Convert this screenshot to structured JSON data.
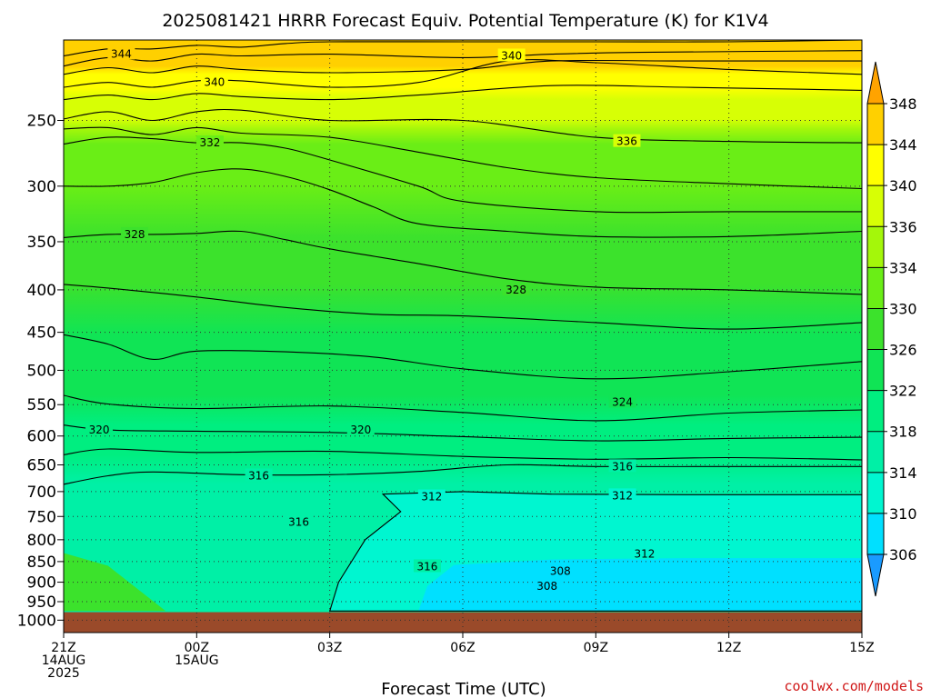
{
  "chart_data": {
    "type": "contour",
    "title": "2025081421 HRRR Forecast Equiv. Potential Temperature (K) for K1V4",
    "xlabel": "Forecast Time (UTC)",
    "credit": "coolwx.com/models",
    "x_ticks": [
      {
        "hour": 0,
        "lines": [
          "21Z",
          "14AUG",
          "2025"
        ]
      },
      {
        "hour": 3,
        "lines": [
          "00Z",
          "15AUG"
        ]
      },
      {
        "hour": 6,
        "lines": [
          "03Z"
        ]
      },
      {
        "hour": 9,
        "lines": [
          "06Z"
        ]
      },
      {
        "hour": 12,
        "lines": [
          "09Z"
        ]
      },
      {
        "hour": 15,
        "lines": [
          "12Z"
        ]
      },
      {
        "hour": 18,
        "lines": [
          "15Z"
        ]
      }
    ],
    "xlim": [
      0,
      18
    ],
    "y_ticks": [
      250,
      300,
      350,
      400,
      450,
      500,
      550,
      600,
      650,
      700,
      750,
      800,
      850,
      900,
      950,
      1000
    ],
    "ylim_hpa": [
      200,
      1035
    ],
    "y_scale": "log-pressure",
    "ground_pressure_hpa": 978,
    "grid": "dotted",
    "colorbar": {
      "ticks": [
        306,
        310,
        314,
        318,
        322,
        326,
        330,
        334,
        336,
        340,
        344,
        348
      ],
      "bands": [
        {
          "range": [
            302,
            306
          ],
          "color": "#1a9bff"
        },
        {
          "range": [
            306,
            310
          ],
          "color": "#00e0ff"
        },
        {
          "range": [
            310,
            314
          ],
          "color": "#00f6d0"
        },
        {
          "range": [
            314,
            318
          ],
          "color": "#00f0a6"
        },
        {
          "range": [
            318,
            322
          ],
          "color": "#00ee80"
        },
        {
          "range": [
            322,
            326
          ],
          "color": "#10e455"
        },
        {
          "range": [
            326,
            330
          ],
          "color": "#3ce22c"
        },
        {
          "range": [
            330,
            334
          ],
          "color": "#6aee16"
        },
        {
          "range": [
            334,
            336
          ],
          "color": "#a4f70a"
        },
        {
          "range": [
            336,
            340
          ],
          "color": "#d7ff05"
        },
        {
          "range": [
            340,
            344
          ],
          "color": "#ffff00"
        },
        {
          "range": [
            344,
            348
          ],
          "color": "#ffd000"
        },
        {
          "range": [
            348,
            352
          ],
          "color": "#ffa300"
        }
      ],
      "ground_color": "#9a4a2a"
    },
    "contour_labels": [
      {
        "value": "344",
        "hour": 1.3,
        "p": 208
      },
      {
        "value": "340",
        "hour": 3.4,
        "p": 225
      },
      {
        "value": "340",
        "hour": 10.1,
        "p": 209
      },
      {
        "value": "332",
        "hour": 3.3,
        "p": 266
      },
      {
        "value": "336",
        "hour": 12.7,
        "p": 265
      },
      {
        "value": "328",
        "hour": 1.6,
        "p": 343
      },
      {
        "value": "328",
        "hour": 10.2,
        "p": 400
      },
      {
        "value": "324",
        "hour": 12.6,
        "p": 546
      },
      {
        "value": "320",
        "hour": 0.8,
        "p": 590
      },
      {
        "value": "320",
        "hour": 6.7,
        "p": 590
      },
      {
        "value": "316",
        "hour": 4.4,
        "p": 670
      },
      {
        "value": "316",
        "hour": 12.6,
        "p": 653
      },
      {
        "value": "312",
        "hour": 8.3,
        "p": 710
      },
      {
        "value": "312",
        "hour": 12.6,
        "p": 708
      },
      {
        "value": "316",
        "hour": 5.3,
        "p": 762
      },
      {
        "value": "312",
        "hour": 13.1,
        "p": 832
      },
      {
        "value": "316",
        "hour": 8.2,
        "p": 862
      },
      {
        "value": "308",
        "hour": 11.2,
        "p": 873
      },
      {
        "value": "308",
        "hour": 10.9,
        "p": 910
      }
    ],
    "series": [
      {
        "value": 346,
        "points": [
          [
            0,
            209
          ],
          [
            1,
            205
          ],
          [
            2,
            205
          ],
          [
            3,
            203
          ],
          [
            4,
            204
          ],
          [
            5,
            202
          ],
          [
            6,
            201
          ],
          [
            9,
            201
          ],
          [
            12,
            201
          ],
          [
            15,
            201
          ],
          [
            18,
            200
          ]
        ]
      },
      {
        "value": 344,
        "points": [
          [
            0,
            215
          ],
          [
            1,
            210
          ],
          [
            2,
            212
          ],
          [
            3,
            208
          ],
          [
            4,
            209
          ],
          [
            6,
            208
          ],
          [
            9,
            210
          ],
          [
            11,
            208
          ],
          [
            13,
            207
          ],
          [
            18,
            206
          ]
        ]
      },
      {
        "value": 342,
        "points": [
          [
            0,
            220
          ],
          [
            1,
            216
          ],
          [
            2,
            219
          ],
          [
            3,
            215
          ],
          [
            4,
            217
          ],
          [
            6,
            219
          ],
          [
            9,
            217
          ],
          [
            11,
            212
          ],
          [
            14,
            212
          ],
          [
            18,
            212
          ]
        ]
      },
      {
        "value": 340,
        "points": [
          [
            0,
            228
          ],
          [
            1,
            225
          ],
          [
            2,
            228
          ],
          [
            3,
            224
          ],
          [
            4,
            224
          ],
          [
            6,
            228
          ],
          [
            8,
            225
          ],
          [
            10,
            212
          ],
          [
            12,
            213
          ],
          [
            15,
            217
          ],
          [
            18,
            220
          ]
        ]
      },
      {
        "value": 338,
        "points": [
          [
            0,
            236
          ],
          [
            1,
            233
          ],
          [
            2,
            236
          ],
          [
            3,
            232
          ],
          [
            4,
            234
          ],
          [
            6,
            236
          ],
          [
            8,
            233
          ],
          [
            11,
            227
          ],
          [
            14,
            228
          ],
          [
            18,
            230
          ]
        ]
      },
      {
        "value": 336,
        "points": [
          [
            0,
            249
          ],
          [
            1,
            244
          ],
          [
            2,
            250
          ],
          [
            3,
            244
          ],
          [
            4,
            243
          ],
          [
            6,
            250
          ],
          [
            9,
            250
          ],
          [
            12,
            262
          ],
          [
            15,
            265
          ],
          [
            18,
            266
          ]
        ]
      },
      {
        "value": 334,
        "points": [
          [
            0,
            256
          ],
          [
            1,
            255
          ],
          [
            2,
            260
          ],
          [
            3,
            255
          ],
          [
            4,
            259
          ],
          [
            6,
            262
          ],
          [
            8,
            273
          ],
          [
            10,
            285
          ],
          [
            12,
            293
          ],
          [
            15,
            298
          ],
          [
            18,
            302
          ]
        ]
      },
      {
        "value": 332,
        "points": [
          [
            0,
            267
          ],
          [
            1,
            262
          ],
          [
            2,
            263
          ],
          [
            3,
            266
          ],
          [
            4,
            266
          ],
          [
            5,
            270
          ],
          [
            6,
            279
          ],
          [
            8,
            300
          ],
          [
            9,
            313
          ],
          [
            12,
            322
          ],
          [
            15,
            322
          ],
          [
            18,
            322
          ]
        ]
      },
      {
        "value": 330,
        "points": [
          [
            0,
            300
          ],
          [
            1,
            300
          ],
          [
            2,
            297
          ],
          [
            3,
            289
          ],
          [
            4,
            286
          ],
          [
            5,
            292
          ],
          [
            6,
            303
          ],
          [
            7,
            318
          ],
          [
            8,
            333
          ],
          [
            10,
            340
          ],
          [
            12,
            345
          ],
          [
            15,
            345
          ],
          [
            18,
            340
          ]
        ]
      },
      {
        "value": 328,
        "points": [
          [
            0,
            346
          ],
          [
            1,
            343
          ],
          [
            2,
            343
          ],
          [
            3,
            342
          ],
          [
            4,
            340
          ],
          [
            5,
            348
          ],
          [
            6,
            357
          ],
          [
            8,
            372
          ],
          [
            10,
            388
          ],
          [
            12,
            397
          ],
          [
            15,
            400
          ],
          [
            18,
            405
          ]
        ]
      },
      {
        "value": 326,
        "points": [
          [
            0,
            394
          ],
          [
            1,
            398
          ],
          [
            3,
            408
          ],
          [
            5,
            420
          ],
          [
            7,
            428
          ],
          [
            9,
            430
          ],
          [
            12,
            438
          ],
          [
            15,
            446
          ],
          [
            18,
            438
          ]
        ]
      },
      {
        "value": 324,
        "points": [
          [
            0,
            453
          ],
          [
            1,
            465
          ],
          [
            2,
            485
          ],
          [
            3,
            474
          ],
          [
            5,
            475
          ],
          [
            7,
            482
          ],
          [
            9,
            498
          ],
          [
            12,
            512
          ],
          [
            15,
            502
          ],
          [
            18,
            488
          ]
        ]
      },
      {
        "value": 322,
        "points": [
          [
            0,
            536
          ],
          [
            1,
            549
          ],
          [
            3,
            556
          ],
          [
            6,
            552
          ],
          [
            9,
            562
          ],
          [
            12,
            575
          ],
          [
            15,
            563
          ],
          [
            18,
            558
          ]
        ]
      },
      {
        "value": 320,
        "points": [
          [
            0,
            582
          ],
          [
            1,
            590
          ],
          [
            3,
            592
          ],
          [
            6,
            594
          ],
          [
            9,
            601
          ],
          [
            12,
            608
          ],
          [
            15,
            604
          ],
          [
            18,
            602
          ]
        ]
      },
      {
        "value": 318,
        "points": [
          [
            0,
            632
          ],
          [
            1,
            622
          ],
          [
            3,
            628
          ],
          [
            6,
            626
          ],
          [
            9,
            635
          ],
          [
            12,
            640
          ],
          [
            15,
            637
          ],
          [
            18,
            641
          ]
        ]
      },
      {
        "value": 316,
        "points": [
          [
            0,
            686
          ],
          [
            1,
            670
          ],
          [
            2,
            663
          ],
          [
            4,
            668
          ],
          [
            6,
            668
          ],
          [
            8,
            662
          ],
          [
            10,
            650
          ],
          [
            12,
            653
          ],
          [
            15,
            653
          ],
          [
            18,
            653
          ]
        ]
      }
    ]
  }
}
